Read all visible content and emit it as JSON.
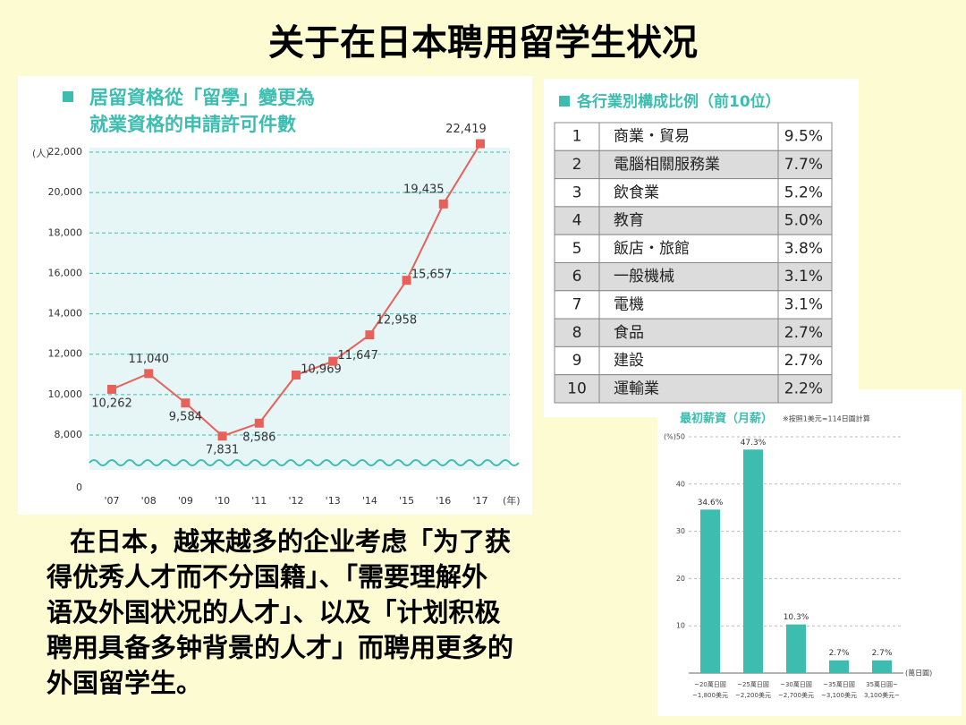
{
  "title": "关于在日本聘用留学生状况",
  "chart_data": [
    {
      "type": "line",
      "title": [
        "居留資格從「留學」變更為",
        "就業資格的申請許可件數"
      ],
      "y_unit": "(人)",
      "x_unit": "(年)",
      "categories": [
        "'07",
        "'08",
        "'09",
        "'10",
        "'11",
        "'12",
        "'13",
        "'14",
        "'15",
        "'16",
        "'17"
      ],
      "values": [
        10262,
        11040,
        9584,
        7831,
        8586,
        10969,
        11647,
        12958,
        15657,
        19435,
        22419
      ],
      "value_labels": [
        "10,262",
        "11,040",
        "9,584",
        "7,831",
        "8,586",
        "10,969",
        "11,647",
        "12,958",
        "15,657",
        "19,435",
        "22,419"
      ],
      "color": "#e8605a",
      "axis_break": true,
      "grid": true,
      "ylim": [
        0,
        22000
      ],
      "yticks": [
        0,
        {
          "value": 8000,
          "label": "8,000"
        },
        {
          "value": 10000,
          "label": "10,000"
        },
        {
          "value": 12000,
          "label": "12,000"
        },
        {
          "value": 14000,
          "label": "14,000"
        },
        {
          "value": 16000,
          "label": "16,000"
        },
        {
          "value": 18000,
          "label": "18,000"
        },
        {
          "value": 20000,
          "label": "20,000"
        },
        {
          "value": 22000,
          "label": "22,000"
        }
      ]
    },
    {
      "type": "bar",
      "title": "最初薪資（月薪）",
      "note": "※按照1美元=114日圓計算",
      "y_unit": "(%)",
      "x_unit": "(萬日圓)",
      "categories": [
        [
          "~20萬日圓",
          "~1,800美元"
        ],
        [
          "~25萬日圓",
          "~2,200美元"
        ],
        [
          "~30萬日圓",
          "~2,700美元"
        ],
        [
          "~35萬日圓",
          "~3,100美元"
        ],
        [
          "35萬日圓~",
          "3,100美元~"
        ]
      ],
      "values": [
        34.6,
        47.3,
        10.3,
        2.7,
        2.7
      ],
      "value_labels": [
        "34.6%",
        "47.3%",
        "10.3%",
        "2.7%",
        "2.7%"
      ],
      "color": "#3dbdb0",
      "grid": true,
      "ylim": [
        0,
        50
      ],
      "yticks": [
        10,
        20,
        30,
        40,
        50
      ]
    }
  ],
  "table": {
    "title": "各行業別構成比例（前10位）",
    "rows": [
      [
        "1",
        "商業・貿易",
        "9.5%"
      ],
      [
        "2",
        "電腦相關服務業",
        "7.7%"
      ],
      [
        "3",
        "飲食業",
        "5.2%"
      ],
      [
        "4",
        "教育",
        "5.0%"
      ],
      [
        "5",
        "飯店・旅館",
        "3.8%"
      ],
      [
        "6",
        "一般機械",
        "3.1%"
      ],
      [
        "7",
        "電機",
        "3.1%"
      ],
      [
        "8",
        "食品",
        "2.7%"
      ],
      [
        "9",
        "建設",
        "2.7%"
      ],
      [
        "10",
        "運輸業",
        "2.2%"
      ]
    ]
  },
  "text": [
    "在日本，越来越多的企业考虑「为了获",
    "得优秀人才而不分国籍」、「需要理解外",
    "语及外国状况的人才」、以及「计划积极",
    "聘用具备多钟背景的人才」而聘用更多的",
    "外国留学生。"
  ]
}
